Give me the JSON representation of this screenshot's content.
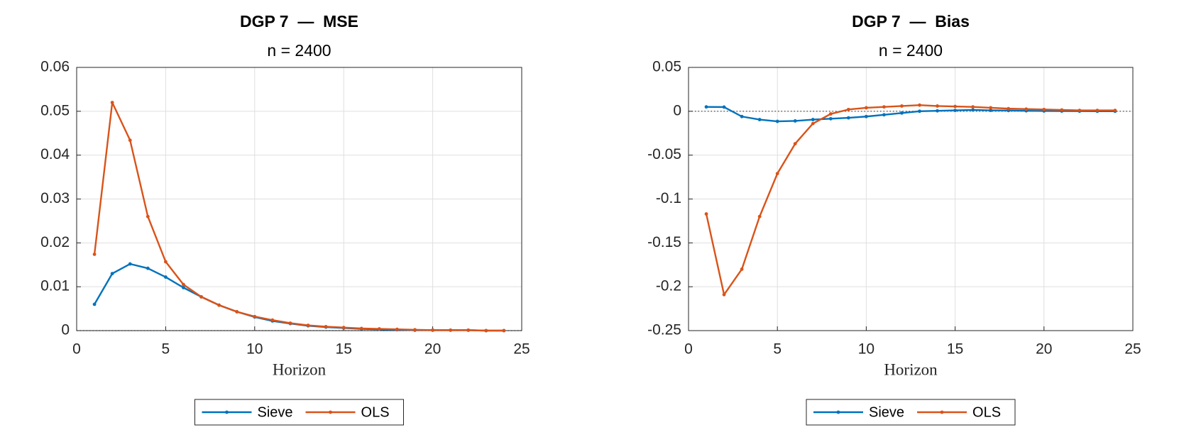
{
  "chart_data": [
    {
      "type": "line",
      "title": "DGP 7  —  MSE",
      "subtitle": "n = 2400",
      "xlabel": "Horizon",
      "x": [
        1,
        2,
        3,
        4,
        5,
        6,
        7,
        8,
        9,
        10,
        11,
        12,
        13,
        14,
        15,
        16,
        17,
        18,
        19,
        20,
        21,
        22,
        23,
        24
      ],
      "series": [
        {
          "name": "Sieve",
          "color": "#0072bd",
          "values": [
            0.006,
            0.013,
            0.0152,
            0.0142,
            0.0122,
            0.0098,
            0.0077,
            0.0058,
            0.0043,
            0.0031,
            0.0022,
            0.0016,
            0.0011,
            0.0008,
            0.0006,
            0.0004,
            0.0003,
            0.0002,
            0.0001,
            0.0001,
            0.0001,
            0.0001,
            0,
            0
          ]
        },
        {
          "name": "OLS",
          "color": "#d95319",
          "values": [
            0.0174,
            0.052,
            0.0434,
            0.026,
            0.0157,
            0.0105,
            0.0077,
            0.0058,
            0.0043,
            0.0032,
            0.0024,
            0.0017,
            0.0012,
            0.0009,
            0.0007,
            0.0005,
            0.0004,
            0.0003,
            0.0002,
            0.0001,
            0.0001,
            0.0001,
            0,
            0
          ]
        }
      ],
      "xlim": [
        0,
        25
      ],
      "ylim": [
        0,
        0.06
      ],
      "xticks": [
        0,
        5,
        10,
        15,
        20,
        25
      ],
      "yticks": [
        0,
        0.01,
        0.02,
        0.03,
        0.04,
        0.05,
        0.06
      ],
      "grid": true,
      "reference_line": 0,
      "legend": "bottom"
    },
    {
      "type": "line",
      "title": "DGP 7  —  Bias",
      "subtitle": "n = 2400",
      "xlabel": "Horizon",
      "x": [
        1,
        2,
        3,
        4,
        5,
        6,
        7,
        8,
        9,
        10,
        11,
        12,
        13,
        14,
        15,
        16,
        17,
        18,
        19,
        20,
        21,
        22,
        23,
        24
      ],
      "series": [
        {
          "name": "Sieve",
          "color": "#0072bd",
          "values": [
            0.005,
            0.0048,
            -0.006,
            -0.0095,
            -0.0115,
            -0.011,
            -0.0095,
            -0.0085,
            -0.0075,
            -0.006,
            -0.004,
            -0.002,
            0,
            0.0005,
            0.001,
            0.0015,
            0.001,
            0.0008,
            0.0005,
            0.0003,
            0.0002,
            0.0001,
            0,
            0
          ]
        },
        {
          "name": "OLS",
          "color": "#d95319",
          "values": [
            -0.117,
            -0.209,
            -0.18,
            -0.12,
            -0.071,
            -0.037,
            -0.014,
            -0.003,
            0.002,
            0.004,
            0.005,
            0.006,
            0.007,
            0.006,
            0.0055,
            0.005,
            0.004,
            0.003,
            0.0025,
            0.002,
            0.0015,
            0.001,
            0.001,
            0.001
          ]
        }
      ],
      "xlim": [
        0,
        25
      ],
      "ylim": [
        -0.25,
        0.05
      ],
      "xticks": [
        0,
        5,
        10,
        15,
        20,
        25
      ],
      "yticks": [
        -0.25,
        -0.2,
        -0.15,
        -0.1,
        -0.05,
        0,
        0.05
      ],
      "grid": true,
      "reference_line": 0,
      "legend": "bottom"
    }
  ]
}
